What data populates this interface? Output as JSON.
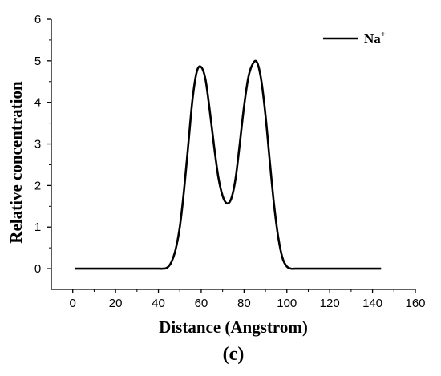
{
  "chart_data": {
    "type": "line",
    "xlabel": "Distance (Angstrom)",
    "ylabel": "Relative concentration",
    "panel_label": "(c)",
    "xlim": [
      -10,
      160
    ],
    "ylim": [
      -0.5,
      6
    ],
    "xticks": [
      0,
      20,
      40,
      60,
      80,
      100,
      120,
      140,
      160
    ],
    "yticks": [
      0,
      1,
      2,
      3,
      4,
      5,
      6
    ],
    "legend_position": "top-right",
    "grid": false,
    "series": [
      {
        "name": "Na",
        "name_superscript": "+",
        "color": "#000000",
        "x": [
          1,
          10,
          20,
          30,
          40,
          42,
          44,
          46,
          48,
          50,
          52,
          54,
          56,
          58,
          60,
          62,
          64,
          66,
          68,
          70,
          72,
          74,
          76,
          78,
          80,
          82,
          84,
          86,
          88,
          90,
          92,
          94,
          96,
          98,
          100,
          102,
          104,
          110,
          120,
          130,
          140,
          144
        ],
        "y": [
          0,
          0,
          0,
          0,
          0,
          0.0,
          0.02,
          0.15,
          0.45,
          1.0,
          1.9,
          3.0,
          4.1,
          4.75,
          4.85,
          4.55,
          3.8,
          2.95,
          2.2,
          1.75,
          1.57,
          1.68,
          2.15,
          3.0,
          3.9,
          4.6,
          4.92,
          4.97,
          4.55,
          3.7,
          2.6,
          1.55,
          0.75,
          0.25,
          0.05,
          0.0,
          0,
          0,
          0,
          0,
          0,
          0
        ]
      }
    ]
  }
}
